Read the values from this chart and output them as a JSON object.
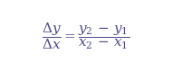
{
  "formula_left": "\\dfrac{\\Delta y}{\\Delta x}",
  "formula_right": "\\dfrac{y_2\\!-\\!y_1}{x_2\\!-\\!x_1}",
  "text_color": "#4a4a8a",
  "background_color": "#ffffff",
  "fontsize": 11,
  "figsize": [
    1.9,
    0.8
  ],
  "dpi": 100
}
